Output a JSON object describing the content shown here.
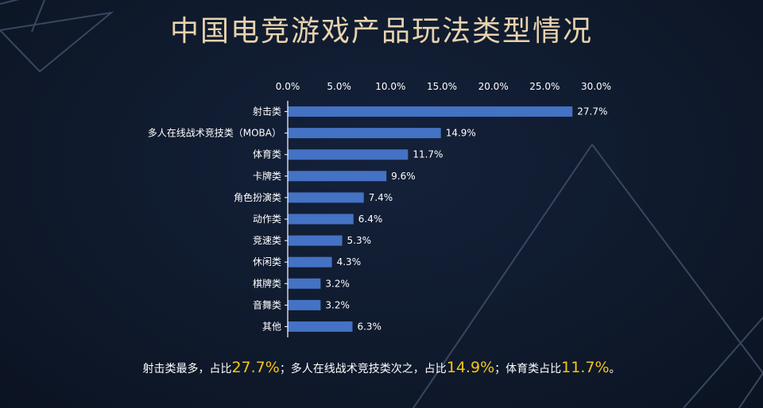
{
  "title": "中国电竞游戏产品玩法类型情况",
  "chart_data": {
    "type": "bar",
    "orientation": "horizontal",
    "x_ticks": [
      "0.0%",
      "5.0%",
      "10.0%",
      "15.0%",
      "20.0%",
      "25.0%",
      "30.0%"
    ],
    "xlim": [
      0,
      30
    ],
    "categories": [
      "射击类",
      "多人在线战术竞技类（MOBA）",
      "体育类",
      "卡牌类",
      "角色扮演类",
      "动作类",
      "竞速类",
      "休闲类",
      "棋牌类",
      "音舞类",
      "其他"
    ],
    "values": [
      27.7,
      14.9,
      11.7,
      9.6,
      7.4,
      6.4,
      5.3,
      4.3,
      3.2,
      3.2,
      6.3
    ],
    "value_labels": [
      "27.7%",
      "14.9%",
      "11.7%",
      "9.6%",
      "7.4%",
      "6.4%",
      "5.3%",
      "4.3%",
      "3.2%",
      "3.2%",
      "6.3%"
    ],
    "axis_position": "top",
    "grid": false,
    "bar_color": "#4472c4"
  },
  "summary": {
    "part1": "射击类最多，占比",
    "hl1": "27.7%",
    "part2": "；多人在线战术竞技类次之，占比",
    "hl2": "14.9%",
    "part3": "；体育类占比",
    "hl3": "11.7%",
    "part4": "。"
  },
  "colors": {
    "title": "#e7d3ad",
    "highlight": "#f5c518",
    "bar": "#4472c4",
    "background": "#0f1a2d"
  }
}
